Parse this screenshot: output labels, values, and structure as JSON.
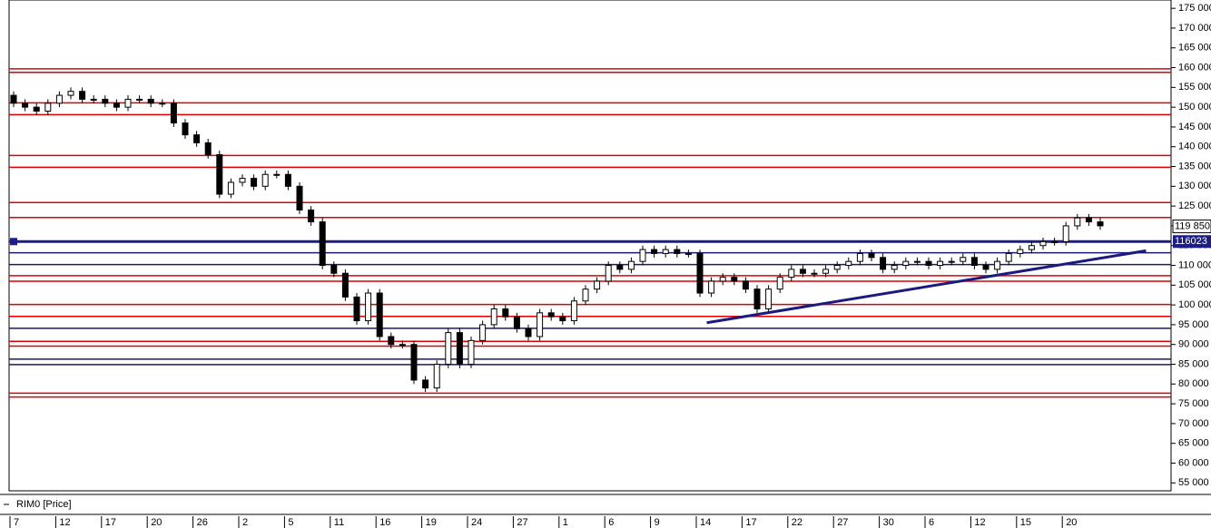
{
  "chart_data": {
    "type": "candlestick",
    "legend": "RIM0 [Price]",
    "categories": [
      "7",
      null,
      null,
      null,
      "12",
      null,
      null,
      null,
      "17",
      null,
      null,
      null,
      "20",
      null,
      null,
      null,
      "26",
      null,
      null,
      null,
      "2",
      null,
      null,
      null,
      "5",
      null,
      null,
      null,
      "11",
      null,
      null,
      null,
      "16",
      null,
      null,
      null,
      "19",
      null,
      null,
      null,
      "24",
      null,
      null,
      null,
      "27",
      null,
      null,
      null,
      "1",
      null,
      null,
      null,
      "6",
      null,
      null,
      null,
      "9",
      null,
      null,
      null,
      "14",
      null,
      null,
      null,
      "17",
      null,
      null,
      null,
      "22",
      null,
      null,
      null,
      "27",
      null,
      null,
      null,
      "30",
      null,
      null,
      null,
      "6",
      null,
      null,
      null,
      "12",
      null,
      null,
      null,
      "15",
      null,
      null,
      null,
      "20",
      null,
      null,
      null
    ],
    "open": [
      153000,
      151000,
      150000,
      149000,
      151000,
      153000,
      154000,
      152000,
      152000,
      151000,
      150000,
      152000,
      152000,
      151000,
      151000,
      146000,
      143000,
      141000,
      138000,
      128000,
      131000,
      132000,
      130000,
      133000,
      133000,
      130000,
      124000,
      121000,
      110000,
      108000,
      102000,
      96000,
      103000,
      92000,
      90000,
      90000,
      81000,
      79000,
      85000,
      93000,
      85000,
      91000,
      95000,
      99000,
      97000,
      94000,
      92000,
      98000,
      97000,
      96000,
      101000,
      104000,
      106000,
      110000,
      109000,
      111000,
      114000,
      113000,
      114000,
      113000,
      113000,
      103000,
      106000,
      107000,
      106000,
      104000,
      99000,
      104000,
      107000,
      109000,
      108000,
      108000,
      109000,
      110000,
      111000,
      113000,
      112000,
      109000,
      110000,
      111000,
      111000,
      110000,
      111000,
      111000,
      112000,
      110000,
      109000,
      111000,
      113000,
      114000,
      115000,
      116000,
      116000,
      120000,
      122000,
      121000
    ],
    "high": [
      154000,
      152000,
      151000,
      152000,
      154000,
      155000,
      155000,
      153000,
      153000,
      152000,
      153000,
      153000,
      153000,
      152000,
      152000,
      147000,
      144000,
      142000,
      139000,
      132000,
      133000,
      133000,
      134000,
      134000,
      134000,
      131000,
      125000,
      122000,
      111000,
      109000,
      103000,
      104000,
      104000,
      93000,
      91000,
      91000,
      82000,
      86000,
      94000,
      94000,
      92000,
      96000,
      100000,
      100000,
      98000,
      95000,
      99000,
      99000,
      98000,
      102000,
      105000,
      107000,
      111000,
      111000,
      112000,
      115000,
      115000,
      115000,
      115000,
      114000,
      114000,
      107000,
      108000,
      108000,
      107000,
      105000,
      105000,
      108000,
      110000,
      110000,
      109000,
      110000,
      111000,
      112000,
      114000,
      114000,
      113000,
      111000,
      112000,
      112000,
      112000,
      112000,
      112000,
      113000,
      113000,
      111000,
      112000,
      114000,
      115000,
      116000,
      117000,
      117000,
      121000,
      123000,
      123000,
      122000
    ],
    "low": [
      150000,
      149000,
      148000,
      148000,
      150000,
      152000,
      151000,
      151000,
      150000,
      149000,
      149000,
      151000,
      150000,
      150000,
      145000,
      142000,
      140000,
      137000,
      127000,
      127000,
      130000,
      129000,
      129000,
      132000,
      129000,
      123000,
      120000,
      109000,
      107000,
      101000,
      95000,
      95000,
      91000,
      89000,
      89000,
      80000,
      78000,
      78000,
      84000,
      84000,
      84000,
      90000,
      94000,
      96000,
      93000,
      91000,
      91000,
      96000,
      95000,
      95000,
      100000,
      103000,
      105000,
      108000,
      108000,
      110000,
      112000,
      112000,
      112000,
      112000,
      102000,
      102000,
      105000,
      105000,
      103000,
      98000,
      98000,
      103000,
      106000,
      107000,
      107000,
      107000,
      108000,
      109000,
      110000,
      111000,
      108000,
      108000,
      109000,
      110000,
      109000,
      109000,
      110000,
      110000,
      109000,
      108000,
      108000,
      110000,
      112000,
      113000,
      114000,
      115000,
      115000,
      119000,
      120000,
      119000
    ],
    "close": [
      151000,
      150000,
      149000,
      151000,
      153000,
      154000,
      152000,
      152000,
      151000,
      150000,
      152000,
      152000,
      151000,
      151000,
      146000,
      143000,
      141000,
      138000,
      128000,
      131000,
      132000,
      130000,
      133000,
      133000,
      130000,
      124000,
      121000,
      110000,
      108000,
      102000,
      96000,
      103000,
      92000,
      90000,
      90000,
      81000,
      79000,
      85000,
      93000,
      85000,
      91000,
      95000,
      99000,
      97000,
      94000,
      92000,
      98000,
      97000,
      96000,
      101000,
      104000,
      106000,
      110000,
      109000,
      111000,
      114000,
      113000,
      114000,
      113000,
      113000,
      103000,
      106000,
      107000,
      106000,
      104000,
      99000,
      104000,
      107000,
      109000,
      108000,
      108000,
      109000,
      110000,
      111000,
      113000,
      112000,
      109000,
      110000,
      111000,
      111000,
      110000,
      111000,
      111000,
      112000,
      110000,
      109000,
      111000,
      113000,
      114000,
      115000,
      116000,
      116000,
      120000,
      122000,
      121000,
      120000
    ],
    "up_color": "#ffffff",
    "down_color": "#000000",
    "ylim": [
      53000,
      177100
    ],
    "yticks": [
      {
        "value": 55000,
        "label": "55 000"
      },
      {
        "value": 60000,
        "label": "60 000"
      },
      {
        "value": 65000,
        "label": "65 000"
      },
      {
        "value": 70000,
        "label": "70 000"
      },
      {
        "value": 75000,
        "label": "75 000"
      },
      {
        "value": 80000,
        "label": "80 000"
      },
      {
        "value": 85000,
        "label": "85 000"
      },
      {
        "value": 90000,
        "label": "90 000"
      },
      {
        "value": 95000,
        "label": "95 000"
      },
      {
        "value": 100000,
        "label": "100 000"
      },
      {
        "value": 105000,
        "label": "105 000"
      },
      {
        "value": 110000,
        "label": "110 000"
      },
      {
        "value": 115000,
        "label": "115 000"
      },
      {
        "value": 120000,
        "label": "120 000"
      },
      {
        "value": 125000,
        "label": "125 000"
      },
      {
        "value": 130000,
        "label": "130 000"
      },
      {
        "value": 135000,
        "label": "135 000"
      },
      {
        "value": 140000,
        "label": "140 000"
      },
      {
        "value": 145000,
        "label": "145 000"
      },
      {
        "value": 150000,
        "label": "150 000"
      },
      {
        "value": 155000,
        "label": "155 000"
      },
      {
        "value": 160000,
        "label": "160 000"
      },
      {
        "value": 165000,
        "label": "165 000"
      },
      {
        "value": 170000,
        "label": "170 000"
      },
      {
        "value": 175000,
        "label": "175 000"
      }
    ],
    "levels": [
      {
        "value": 159700,
        "color": "#e00000"
      },
      {
        "value": 158800,
        "color": "#e00000"
      },
      {
        "value": 151100,
        "color": "#e00000"
      },
      {
        "value": 148100,
        "color": "#e00000"
      },
      {
        "value": 137800,
        "color": "#e00000"
      },
      {
        "value": 134800,
        "color": "#e00000"
      },
      {
        "value": 125900,
        "color": "#e00000"
      },
      {
        "value": 122100,
        "color": "#e00000"
      },
      {
        "value": 113200,
        "color": "#1a1a6e"
      },
      {
        "value": 110200,
        "color": "#1a1a6e"
      },
      {
        "value": 107400,
        "color": "#e00000"
      },
      {
        "value": 106000,
        "color": "#e00000"
      },
      {
        "value": 100100,
        "color": "#e00000"
      },
      {
        "value": 97100,
        "color": "#e00000"
      },
      {
        "value": 94100,
        "color": "#1a1a6e"
      },
      {
        "value": 90800,
        "color": "#e00000"
      },
      {
        "value": 89600,
        "color": "#e00000"
      },
      {
        "value": 86300,
        "color": "#1a1a6e"
      },
      {
        "value": 84900,
        "color": "#1a1a6e"
      },
      {
        "value": 77700,
        "color": "#e00000"
      },
      {
        "value": 76700,
        "color": "#e00000"
      }
    ],
    "price_line": {
      "value": 116023,
      "label": "116023",
      "color": "#1c1c8c"
    },
    "last_price": {
      "value": 119850,
      "label": "119 850"
    },
    "trendline": {
      "x": [
        60.6,
        99
      ],
      "values": [
        95500,
        113700
      ],
      "color": "#1a1a80"
    }
  }
}
